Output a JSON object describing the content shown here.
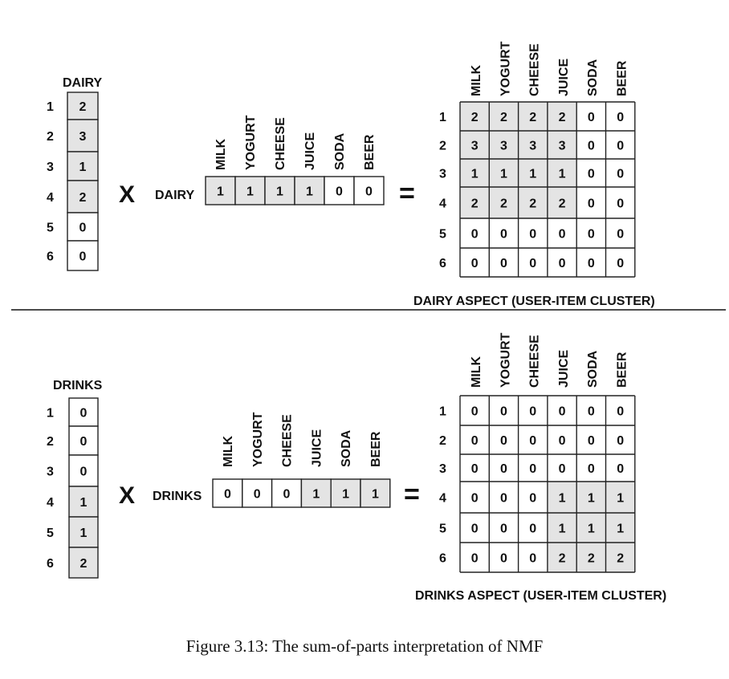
{
  "columns": [
    "MILK",
    "YOGURT",
    "CHEESE",
    "JUICE",
    "SODA",
    "BEER"
  ],
  "rows": [
    "1",
    "2",
    "3",
    "4",
    "5",
    "6"
  ],
  "times": "X",
  "equals": "=",
  "dairy": {
    "name": "DAIRY",
    "user_vector": [
      2,
      3,
      1,
      2,
      0,
      0
    ],
    "item_vector": [
      1,
      1,
      1,
      1,
      0,
      0
    ],
    "product": [
      [
        2,
        2,
        2,
        2,
        0,
        0
      ],
      [
        3,
        3,
        3,
        3,
        0,
        0
      ],
      [
        1,
        1,
        1,
        1,
        0,
        0
      ],
      [
        2,
        2,
        2,
        2,
        0,
        0
      ],
      [
        0,
        0,
        0,
        0,
        0,
        0
      ],
      [
        0,
        0,
        0,
        0,
        0,
        0
      ]
    ],
    "aspect_label": "DAIRY ASPECT (USER-ITEM CLUSTER)",
    "highlight_color": "#e4e4e4"
  },
  "drinks": {
    "name": "DRINKS",
    "user_vector": [
      0,
      0,
      0,
      1,
      1,
      2
    ],
    "item_vector": [
      0,
      0,
      0,
      1,
      1,
      1
    ],
    "product": [
      [
        0,
        0,
        0,
        0,
        0,
        0
      ],
      [
        0,
        0,
        0,
        0,
        0,
        0
      ],
      [
        0,
        0,
        0,
        0,
        0,
        0
      ],
      [
        0,
        0,
        0,
        1,
        1,
        1
      ],
      [
        0,
        0,
        0,
        1,
        1,
        1
      ],
      [
        0,
        0,
        0,
        2,
        2,
        2
      ]
    ],
    "aspect_label": "DRINKS ASPECT (USER-ITEM CLUSTER)",
    "highlight_color": "#e4e4e4"
  },
  "caption": "Figure 3.13: The sum-of-parts interpretation of NMF"
}
